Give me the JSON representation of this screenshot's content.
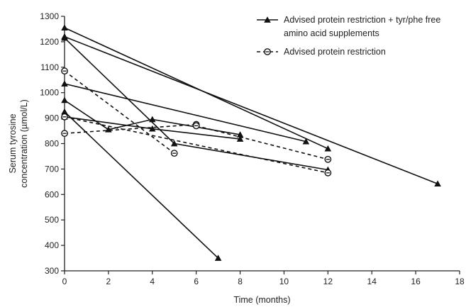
{
  "chart_data": {
    "type": "line",
    "xlabel": "Time (months)",
    "ylabel_lines": [
      "Serum tyrosine",
      "concentration (µmol/L)"
    ],
    "xlim": [
      0,
      18
    ],
    "ylim": [
      300,
      1300
    ],
    "xticks": [
      0,
      2,
      4,
      6,
      8,
      10,
      12,
      14,
      16,
      18
    ],
    "yticks": [
      300,
      400,
      500,
      600,
      700,
      800,
      900,
      1000,
      1100,
      1200,
      1300
    ],
    "grid": false,
    "legend": {
      "placement": "top-right",
      "entries": [
        {
          "label_lines": [
            "Advised protein restriction + tyr/phe free",
            "amino acid supplements"
          ],
          "marker": "triangle",
          "dash": "solid"
        },
        {
          "label_lines": [
            "Advised protein restriction"
          ],
          "marker": "circle",
          "dash": "dashed"
        }
      ]
    },
    "series": [
      {
        "group": 0,
        "marker": "triangle",
        "dash": "solid",
        "points": [
          [
            0,
            1255
          ],
          [
            12,
            780
          ]
        ]
      },
      {
        "group": 0,
        "marker": "triangle",
        "dash": "solid",
        "points": [
          [
            0,
            1220
          ],
          [
            17,
            642
          ]
        ]
      },
      {
        "group": 0,
        "marker": "triangle",
        "dash": "solid",
        "points": [
          [
            0,
            1215
          ],
          [
            5,
            800
          ],
          [
            12,
            697
          ]
        ]
      },
      {
        "group": 0,
        "marker": "triangle",
        "dash": "solid",
        "points": [
          [
            0,
            1035
          ],
          [
            11,
            808
          ]
        ]
      },
      {
        "group": 0,
        "marker": "triangle",
        "dash": "solid",
        "points": [
          [
            0,
            970
          ],
          [
            2,
            855
          ],
          [
            4,
            895
          ],
          [
            8,
            835
          ]
        ]
      },
      {
        "group": 0,
        "marker": "triangle",
        "dash": "solid",
        "points": [
          [
            0,
            905
          ],
          [
            4,
            858
          ],
          [
            8,
            818
          ]
        ]
      },
      {
        "group": 0,
        "marker": "triangle",
        "dash": "solid",
        "points": [
          [
            0,
            925
          ],
          [
            7,
            350
          ]
        ]
      },
      {
        "group": 1,
        "marker": "circle",
        "dash": "dashed",
        "points": [
          [
            0,
            1085
          ],
          [
            5,
            762
          ]
        ]
      },
      {
        "group": 1,
        "marker": "circle",
        "dash": "dashed",
        "points": [
          [
            0,
            905
          ],
          [
            12,
            685
          ]
        ]
      },
      {
        "group": 1,
        "marker": "circle",
        "dash": "dashed",
        "points": [
          [
            0,
            840
          ],
          [
            6,
            875
          ]
        ]
      },
      {
        "group": 1,
        "marker": "circle",
        "dash": "dashed",
        "points": [
          [
            6,
            870
          ],
          [
            12,
            738
          ]
        ]
      }
    ]
  }
}
